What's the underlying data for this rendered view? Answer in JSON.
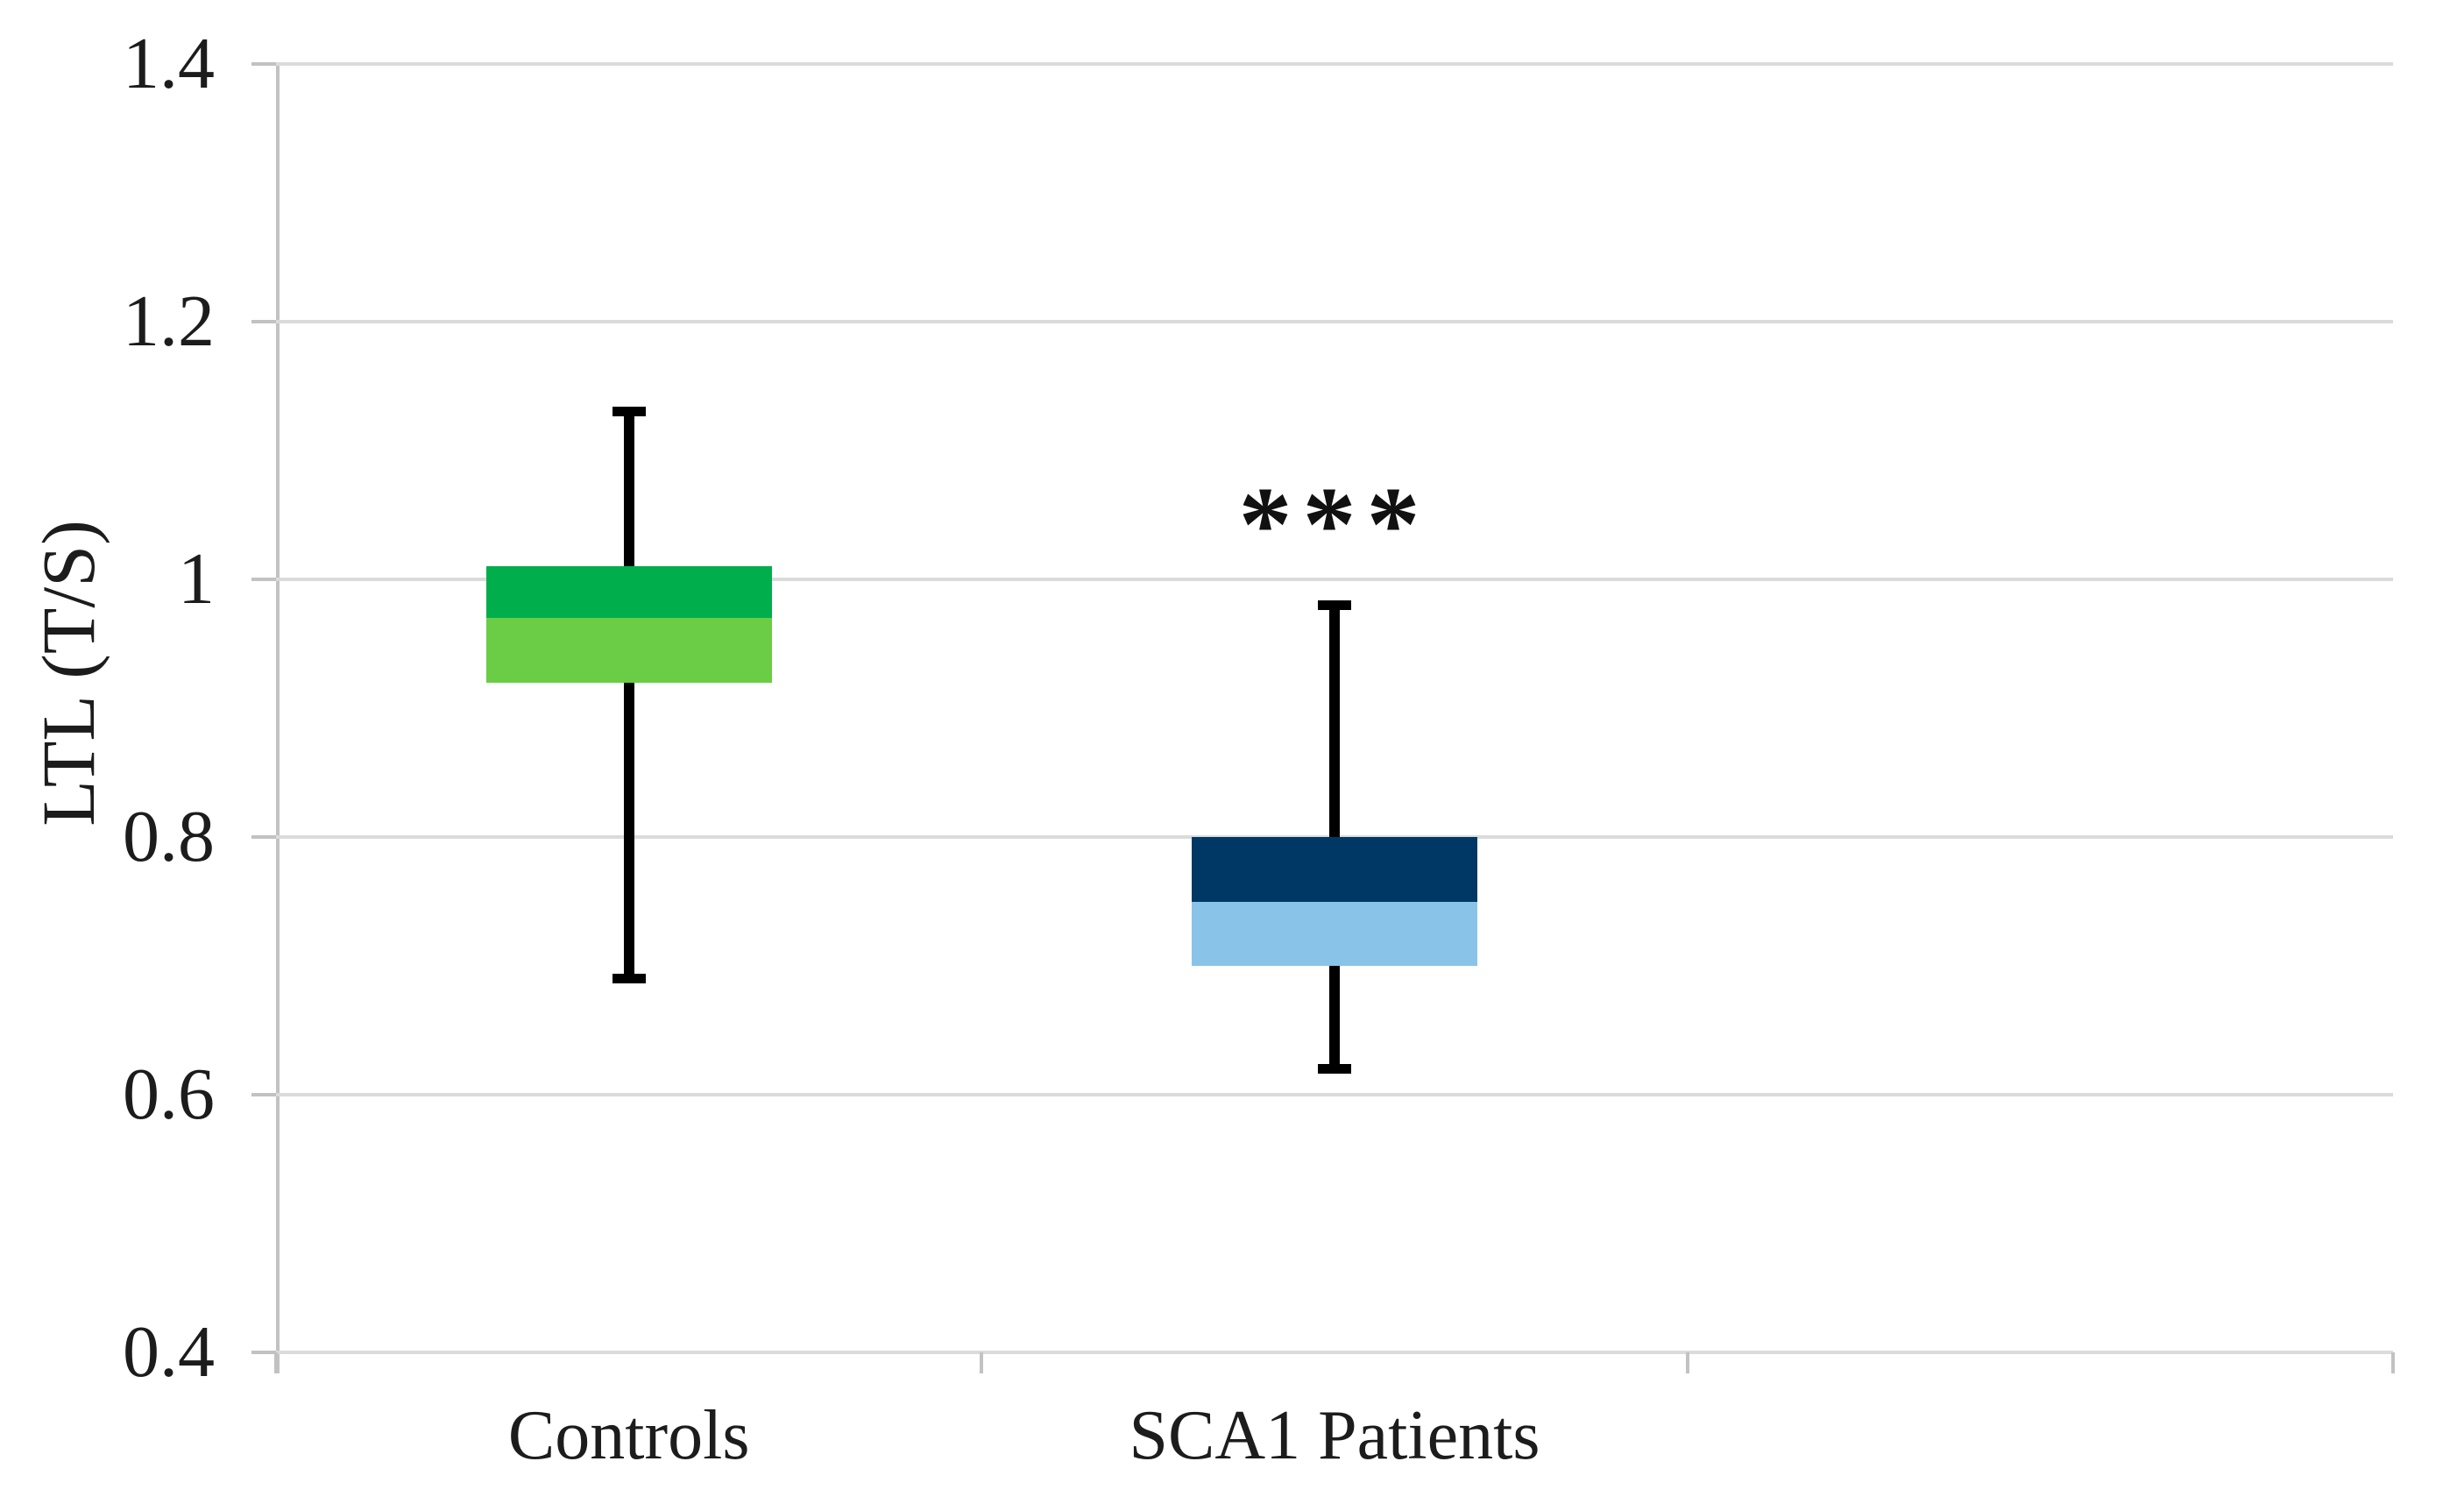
{
  "chart_data": {
    "type": "boxplot",
    "title": "",
    "ylabel": "LTL (T/S)",
    "xlabel": "",
    "ylim": [
      0.4,
      1.4
    ],
    "yticks": [
      1.4,
      1.2,
      1.0,
      0.8,
      0.6,
      0.4
    ],
    "ytick_labels": [
      "1.4",
      "1.2",
      "1",
      "0.8",
      "0.6",
      "0.4"
    ],
    "grid": "horizontal-gridlines-on",
    "legend": "none",
    "categories": [
      "Controls",
      "SCA1 Patients"
    ],
    "series": [
      {
        "name": "Controls",
        "whisker_low": 0.69,
        "q1": 0.92,
        "median": 0.97,
        "q3": 1.01,
        "whisker_high": 1.13,
        "box_color_upper": "#00ae4c",
        "box_color_lower": "#6bcc45",
        "annotation": ""
      },
      {
        "name": "SCA1 Patients",
        "whisker_low": 0.62,
        "q1": 0.7,
        "median": 0.75,
        "q3": 0.8,
        "whisker_high": 0.98,
        "box_color_upper": "#003865",
        "box_color_lower": "#8ac3e8",
        "annotation": "***"
      }
    ]
  },
  "colors": {
    "gridline": "#dbdbdb",
    "axis": "#c2c2c2",
    "whisker": "#000000",
    "text": "#1c1c1c",
    "background": "#ffffff"
  }
}
